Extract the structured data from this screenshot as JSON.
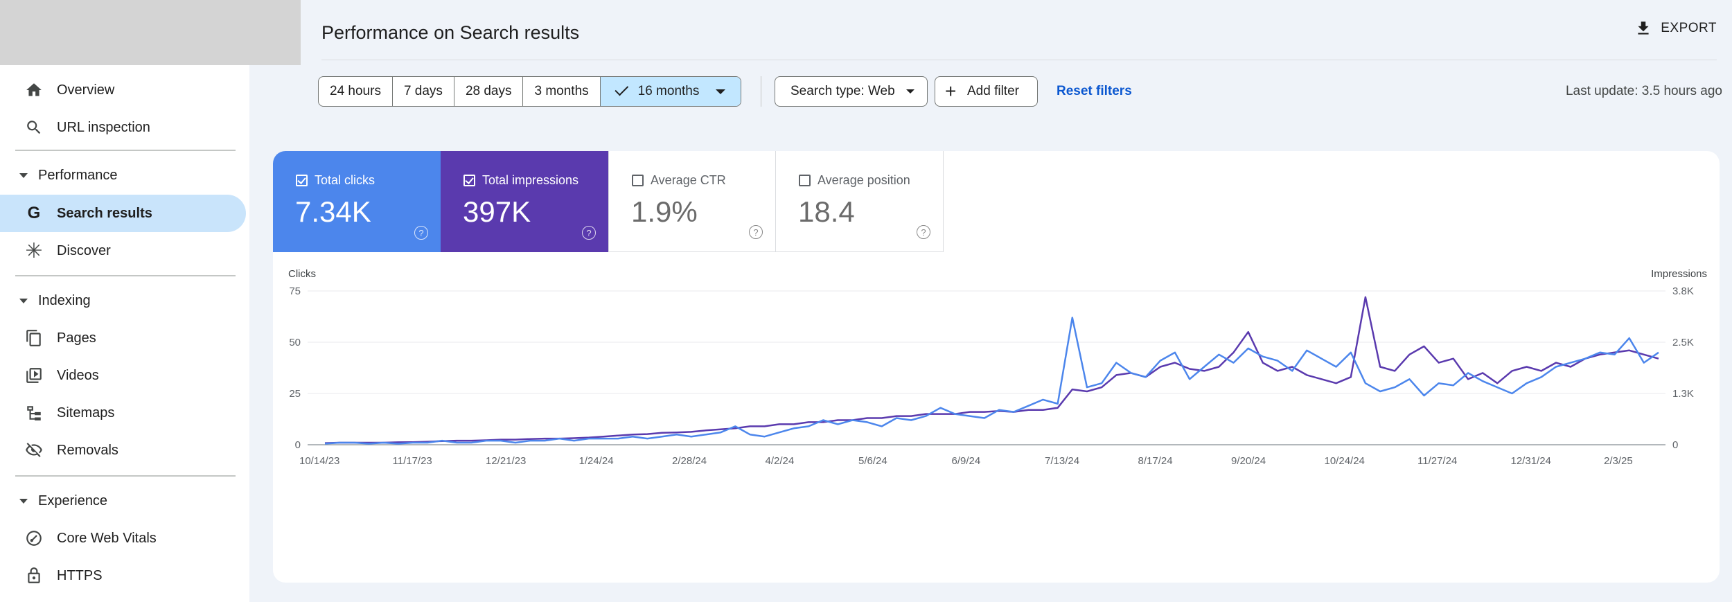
{
  "sidebar": {
    "items": [
      {
        "label": "Overview",
        "icon": "home-icon"
      },
      {
        "label": "URL inspection",
        "icon": "search-icon"
      },
      {
        "section": "Performance"
      },
      {
        "label": "Search results",
        "icon": "google-g-icon",
        "active": true
      },
      {
        "label": "Discover",
        "icon": "asterisk-icon"
      },
      {
        "section": "Indexing"
      },
      {
        "label": "Pages",
        "icon": "pages-icon"
      },
      {
        "label": "Videos",
        "icon": "video-icon"
      },
      {
        "label": "Sitemaps",
        "icon": "sitemap-icon"
      },
      {
        "label": "Removals",
        "icon": "eye-off-icon"
      },
      {
        "section": "Experience"
      },
      {
        "label": "Core Web Vitals",
        "icon": "gauge-icon"
      },
      {
        "label": "HTTPS",
        "icon": "lock-icon"
      }
    ]
  },
  "header": {
    "title": "Performance on Search results",
    "export_label": "EXPORT"
  },
  "toolbar": {
    "date_ranges": [
      "24 hours",
      "7 days",
      "28 days",
      "3 months",
      "16 months"
    ],
    "selected_range": "16 months",
    "search_type": "Search type: Web",
    "add_filter": "Add filter",
    "reset_filters": "Reset filters",
    "last_update": "Last update: 3.5 hours ago"
  },
  "metrics": {
    "clicks": {
      "label": "Total clicks",
      "value": "7.34K",
      "checked": true,
      "color": "#4c86ec"
    },
    "impressions": {
      "label": "Total impressions",
      "value": "397K",
      "checked": true,
      "color": "#5a3aae"
    },
    "ctr": {
      "label": "Average CTR",
      "value": "1.9%",
      "checked": false
    },
    "position": {
      "label": "Average position",
      "value": "18.4",
      "checked": false
    }
  },
  "chart_data": {
    "type": "line",
    "left_axis_title": "Clicks",
    "right_axis_title": "Impressions",
    "left_ticks": [
      "75",
      "50",
      "25",
      "0"
    ],
    "right_ticks": [
      "3.8K",
      "2.5K",
      "1.3K",
      "0"
    ],
    "ylim_clicks": [
      0,
      75
    ],
    "ylim_impressions": [
      0,
      3800
    ],
    "x_ticks": [
      "10/14/23",
      "11/17/23",
      "12/21/23",
      "1/24/24",
      "2/28/24",
      "4/2/24",
      "5/6/24",
      "6/9/24",
      "7/13/24",
      "8/17/24",
      "9/20/24",
      "10/24/24",
      "11/27/24",
      "12/31/24",
      "2/3/25"
    ],
    "series": [
      {
        "name": "Total clicks",
        "color": "#4c86ec",
        "axis": "left",
        "values": [
          0.5,
          1,
          1,
          0.5,
          1,
          0.5,
          1,
          1,
          2,
          1,
          1,
          2,
          2,
          1,
          2,
          2,
          3,
          2,
          3,
          3,
          3,
          4,
          3,
          4,
          5,
          4,
          5,
          6,
          9,
          5,
          4,
          6,
          8,
          9,
          12,
          10,
          12,
          11,
          9,
          13,
          12,
          14,
          18,
          15,
          14,
          13,
          17,
          16,
          19,
          22,
          20,
          62,
          28,
          30,
          40,
          35,
          33,
          41,
          45,
          32,
          38,
          44,
          40,
          47,
          43,
          41,
          36,
          46,
          42,
          38,
          45,
          30,
          26,
          28,
          32,
          24,
          30,
          29,
          35,
          31,
          28,
          25,
          30,
          33,
          38,
          40,
          42,
          45,
          44,
          52,
          40,
          45
        ]
      },
      {
        "name": "Total impressions",
        "color": "#5a3aae",
        "axis": "left",
        "values": [
          0.8,
          1,
          1,
          1,
          1,
          1.2,
          1.3,
          1.5,
          1.8,
          2,
          2,
          2.2,
          2.5,
          2.5,
          2.8,
          3,
          3,
          3.2,
          3.5,
          4,
          4.5,
          5,
          5.2,
          5.8,
          6,
          6.3,
          7,
          7.5,
          8,
          9,
          9,
          10,
          10,
          11,
          11,
          12,
          12,
          13,
          13,
          14,
          14,
          15,
          15,
          15,
          16,
          16,
          16.5,
          16,
          17,
          17,
          18,
          27,
          26,
          28,
          34,
          35,
          33,
          38,
          40,
          37,
          36,
          38,
          45,
          55,
          40,
          36,
          38,
          34,
          32,
          30,
          33,
          72,
          38,
          36,
          44,
          48,
          40,
          42,
          32,
          35,
          30,
          36,
          38,
          36,
          40,
          38,
          42,
          44,
          45,
          46,
          44,
          42
        ]
      }
    ]
  }
}
